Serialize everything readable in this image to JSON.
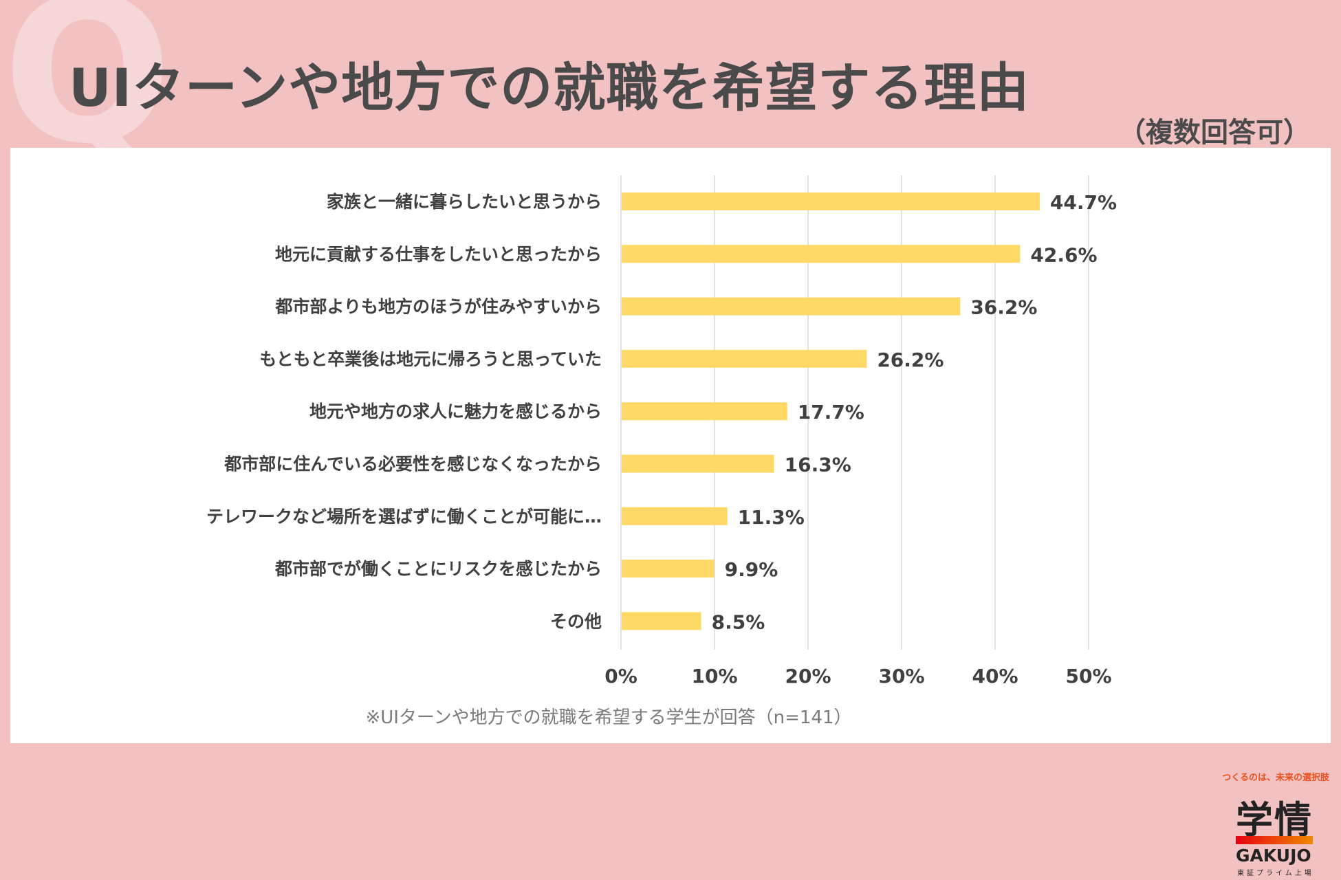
{
  "header": {
    "title": "UIターンや地方での就職を希望する理由",
    "subtitle": "（複数回答可）",
    "watermark": "Q"
  },
  "note": "※UIターンや地方での就職を希望する学生が回答（n=141）",
  "logo": {
    "tagline": "つくるのは、未来の選択肢",
    "mark": "学情",
    "brand": "GAKUJO",
    "listing": "東証プライム上場"
  },
  "colors": {
    "bar": "#FFD966",
    "grid": "#d9d9d9",
    "text": "#404040"
  },
  "chart_data": {
    "type": "bar",
    "orientation": "horizontal",
    "title": "UIターンや地方での就職を希望する理由",
    "categories": [
      "家族と一緒に暮らしたいと思うから",
      "地元に貢献する仕事をしたいと思ったから",
      "都市部よりも地方のほうが住みやすいから",
      "もともと卒業後は地元に帰ろうと思っていた",
      "地元や地方の求人に魅力を感じるから",
      "都市部に住んでいる必要性を感じなくなったから",
      "テレワークなど場所を選ばずに働くことが可能に…",
      "都市部でが働くことにリスクを感じたから",
      "その他"
    ],
    "values": [
      44.7,
      42.6,
      36.2,
      26.2,
      17.7,
      16.3,
      11.3,
      9.9,
      8.5
    ],
    "value_labels": [
      "44.7%",
      "42.6%",
      "36.2%",
      "26.2%",
      "17.7%",
      "16.3%",
      "11.3%",
      "9.9%",
      "8.5%"
    ],
    "xlim": [
      0,
      50
    ],
    "xticks": [
      0,
      10,
      20,
      30,
      40,
      50
    ],
    "xtick_labels": [
      "0%",
      "10%",
      "20%",
      "30%",
      "40%",
      "50%"
    ],
    "grid": true,
    "xlabel": "",
    "ylabel": ""
  }
}
